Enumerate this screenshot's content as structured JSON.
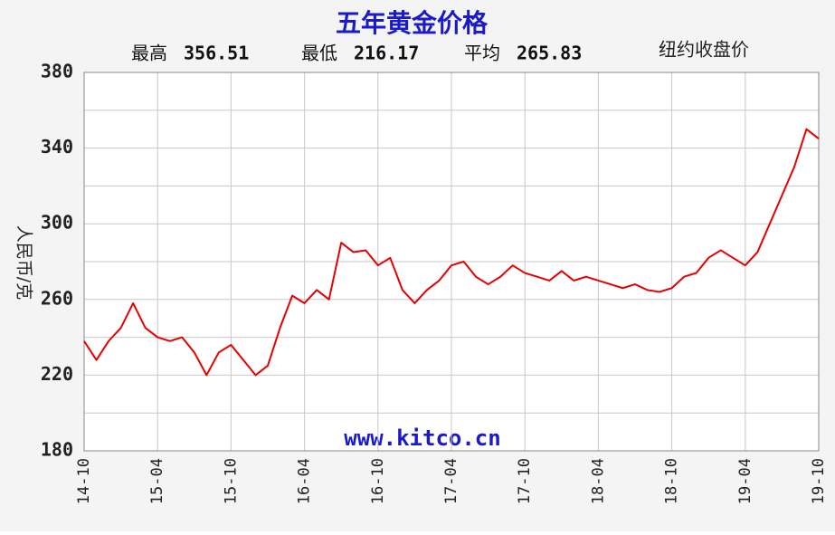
{
  "chart_data": {
    "type": "line",
    "title": "五年黄金价格",
    "stats": [
      {
        "label": "最高",
        "value": 356.51
      },
      {
        "label": "最低",
        "value": 216.17
      },
      {
        "label": "平均",
        "value": 265.83
      }
    ],
    "subtitle": "纽约收盘价",
    "y_label": "人民币/克",
    "watermark": "www.kitco.cn",
    "categories": [
      "14-10",
      null,
      null,
      null,
      null,
      null,
      "15-04",
      null,
      null,
      null,
      null,
      null,
      "15-10",
      null,
      null,
      null,
      null,
      null,
      "16-04",
      null,
      null,
      null,
      null,
      null,
      "16-10",
      null,
      null,
      null,
      null,
      null,
      "17-04",
      null,
      null,
      null,
      null,
      null,
      "17-10",
      null,
      null,
      null,
      null,
      null,
      "18-04",
      null,
      null,
      null,
      null,
      null,
      "18-10",
      null,
      null,
      null,
      null,
      null,
      "19-04",
      null,
      null,
      null,
      null,
      null,
      "19-10"
    ],
    "series": [
      {
        "name": "人民币/克",
        "color": "#e60000",
        "values": [
          238,
          228,
          238,
          245,
          258,
          245,
          240,
          238,
          240,
          232,
          220,
          232,
          236,
          228,
          220,
          225,
          245,
          262,
          258,
          265,
          260,
          290,
          285,
          286,
          278,
          282,
          265,
          258,
          265,
          270,
          278,
          280,
          272,
          268,
          272,
          278,
          274,
          272,
          270,
          275,
          270,
          272,
          270,
          268,
          266,
          268,
          265,
          264,
          266,
          272,
          274,
          282,
          286,
          282,
          278,
          285,
          300,
          315,
          330,
          350,
          345
        ]
      }
    ],
    "ylim": [
      180,
      380
    ],
    "yticks": [
      180,
      220,
      260,
      300,
      340,
      380
    ],
    "y_minor_ticks": [
      200,
      240,
      280,
      320,
      360
    ],
    "grid": true
  }
}
